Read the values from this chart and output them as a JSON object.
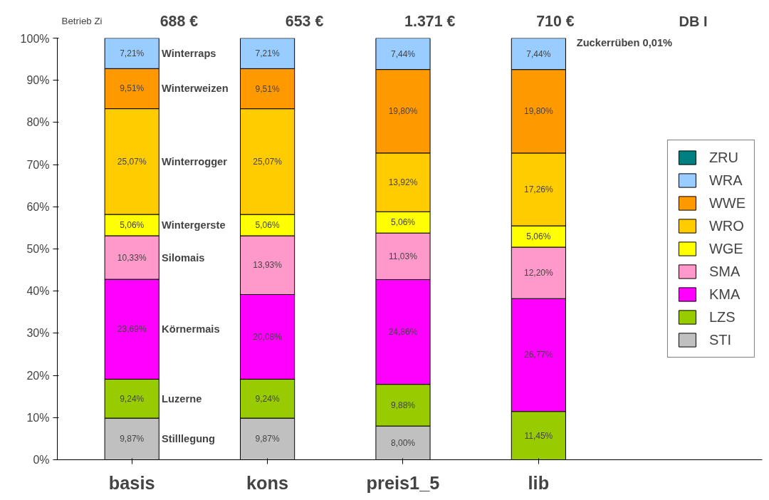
{
  "chart_data": {
    "type": "bar",
    "stacked": true,
    "categories": [
      "basis",
      "kons",
      "preis1_5",
      "lib"
    ],
    "series": [
      {
        "name": "STI",
        "color": "#c0c0c0",
        "values": [
          9.87,
          9.87,
          8.0,
          null
        ],
        "value_labels": [
          "9,87%",
          "9,87%",
          "8,00%",
          null
        ]
      },
      {
        "name": "LZS",
        "color": "#99cc00",
        "values": [
          9.24,
          9.24,
          9.88,
          11.45
        ],
        "value_labels": [
          "9,24%",
          "9,24%",
          "9,88%",
          "11,45%"
        ]
      },
      {
        "name": "KMA",
        "color": "#ff00ff",
        "values": [
          23.69,
          20.08,
          24.86,
          26.77
        ],
        "value_labels": [
          "23,69%",
          "20,08%",
          "24,86%",
          "26,77%"
        ]
      },
      {
        "name": "SMA",
        "color": "#ff99cc",
        "values": [
          10.33,
          13.93,
          11.03,
          12.2
        ],
        "value_labels": [
          "10,33%",
          "13,93%",
          "11,03%",
          "12,20%"
        ]
      },
      {
        "name": "WGE",
        "color": "#ffff00",
        "values": [
          5.06,
          5.06,
          5.06,
          5.06
        ],
        "value_labels": [
          "5,06%",
          "5,06%",
          "5,06%",
          "5,06%"
        ]
      },
      {
        "name": "WRO",
        "color": "#ffcc00",
        "values": [
          25.07,
          25.07,
          13.92,
          17.26
        ],
        "value_labels": [
          "25,07%",
          "25,07%",
          "13,92%",
          "17,26%"
        ]
      },
      {
        "name": "WWE",
        "color": "#ff9900",
        "values": [
          9.51,
          9.51,
          19.8,
          19.8
        ],
        "value_labels": [
          "9,51%",
          "9,51%",
          "19,80%",
          "19,80%"
        ]
      },
      {
        "name": "WRA",
        "color": "#99ccff",
        "values": [
          7.21,
          7.21,
          7.44,
          7.44
        ],
        "value_labels": [
          "7,21%",
          "7,21%",
          "7,44%",
          "7,44%"
        ]
      },
      {
        "name": "ZRU",
        "color": "#008080",
        "values": [
          null,
          null,
          null,
          null
        ]
      }
    ],
    "ylim": [
      0,
      100
    ],
    "yticks": [
      {
        "value": 0,
        "label": "0%"
      },
      {
        "value": 10,
        "label": "10%"
      },
      {
        "value": 20,
        "label": "20%"
      },
      {
        "value": 30,
        "label": "30%"
      },
      {
        "value": 40,
        "label": "40%"
      },
      {
        "value": 50,
        "label": "50%"
      },
      {
        "value": 60,
        "label": "60%"
      },
      {
        "value": 70,
        "label": "70%"
      },
      {
        "value": 80,
        "label": "80%"
      },
      {
        "value": 90,
        "label": "90%"
      },
      {
        "value": 100,
        "label": "100%"
      }
    ],
    "grid": false,
    "legend": "right",
    "annotations": [
      "Betrieb Zi",
      "688 €",
      "653 €",
      "1.371 €",
      "710 €",
      "DB I",
      "Zuckerrüben   0,01%",
      "Winterraps",
      "Winterweizen",
      "Winterrogger",
      "Wintergerste",
      "Silomais",
      "Körnermais",
      "Luzerne",
      "Stilllegung"
    ]
  }
}
